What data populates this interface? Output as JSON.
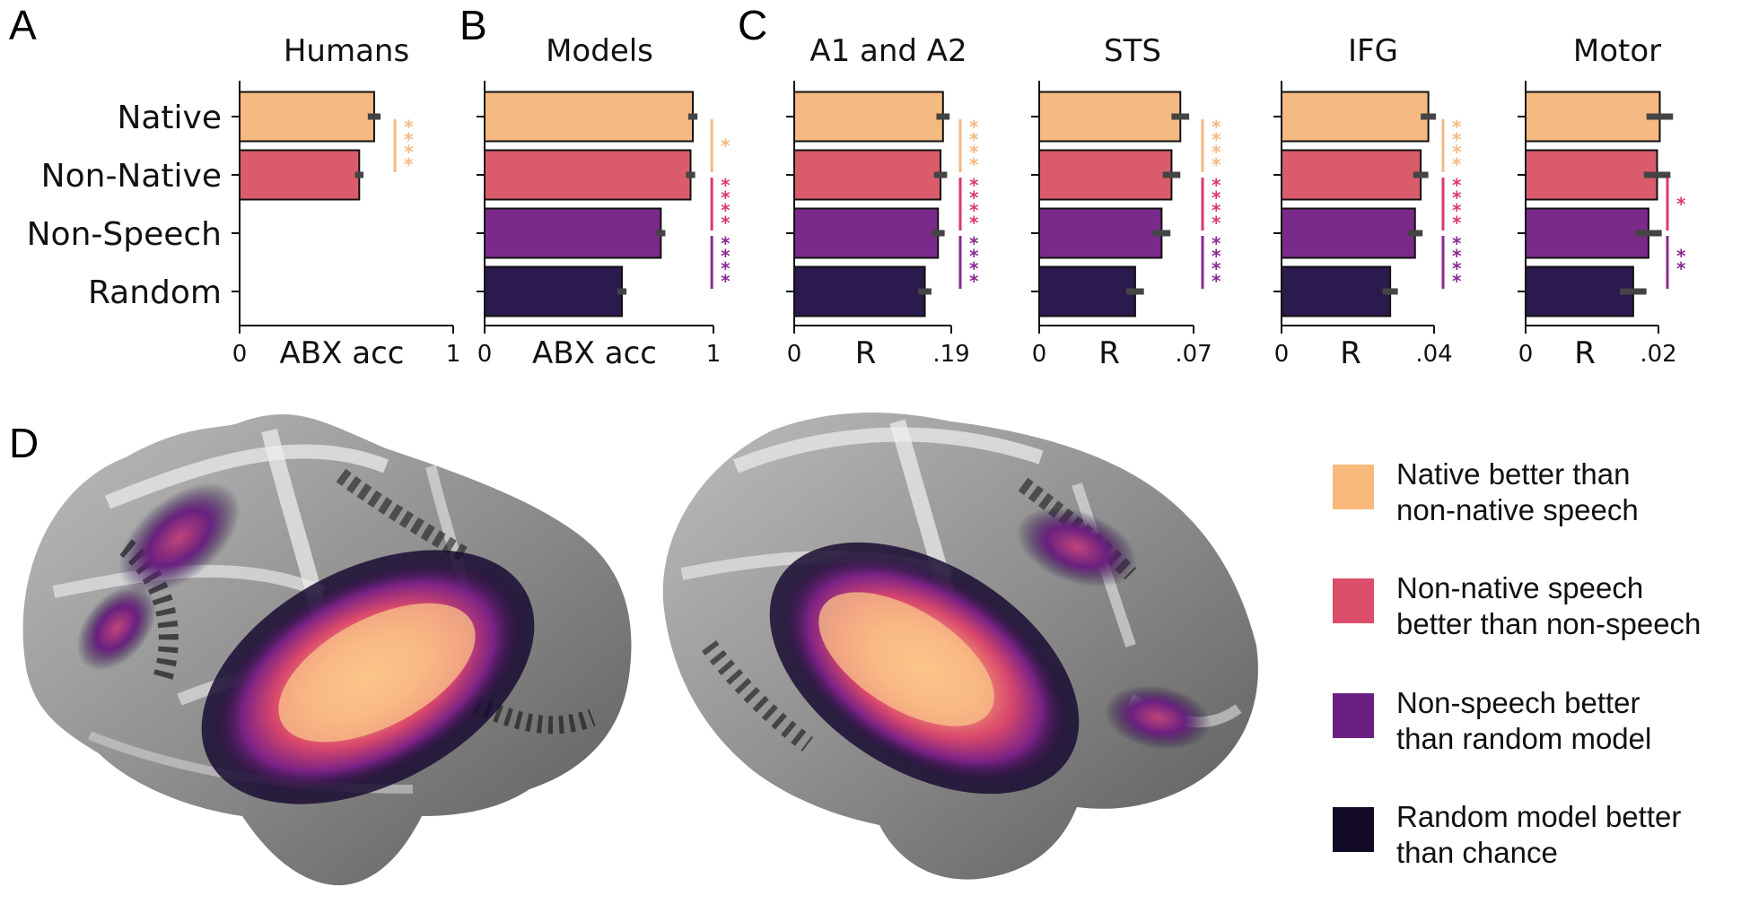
{
  "panels": {
    "A": "A",
    "B": "B",
    "C": "C",
    "D": "D"
  },
  "colors": {
    "native": "#F5B982",
    "non_native": "#DA5C6C",
    "non_speech": "#7A2A8A",
    "random": "#2A1A4E",
    "error_bar": "#444444",
    "sig_native_nonnative": "#F5B982",
    "sig_nonnative_nonspeech": "#DA3A6A",
    "sig_nonspeech_random": "#8A2A90"
  },
  "chart_data": [
    {
      "id": "humans",
      "panel": "A",
      "type": "bar",
      "orientation": "horizontal",
      "title": "Humans",
      "xlabel": "ABX acc",
      "xlim": [
        0,
        1
      ],
      "xtick_labels": [
        "0",
        "1"
      ],
      "categories": [
        "Native",
        "Non-Native",
        "Non-Speech",
        "Random"
      ],
      "values": [
        0.63,
        0.56,
        null,
        null
      ],
      "errors": [
        0.03,
        0.02,
        null,
        null
      ],
      "significance": [
        {
          "pair": [
            0,
            1
          ],
          "label": "****",
          "color": "#F5B982"
        }
      ]
    },
    {
      "id": "models",
      "panel": "B",
      "type": "bar",
      "orientation": "horizontal",
      "title": "Models",
      "xlabel": "ABX acc",
      "xlim": [
        0,
        1
      ],
      "xtick_labels": [
        "0",
        "1"
      ],
      "categories": [
        "Native",
        "Non-Native",
        "Non-Speech",
        "Random"
      ],
      "values": [
        0.91,
        0.9,
        0.77,
        0.6
      ],
      "errors": [
        0.02,
        0.02,
        0.02,
        0.02
      ],
      "significance": [
        {
          "pair": [
            0,
            1
          ],
          "label": "*",
          "color": "#F5B982"
        },
        {
          "pair": [
            1,
            2
          ],
          "label": "****",
          "color": "#DA3A6A"
        },
        {
          "pair": [
            2,
            3
          ],
          "label": "****",
          "color": "#8A2A90"
        }
      ]
    },
    {
      "id": "a1a2",
      "panel": "C",
      "type": "bar",
      "orientation": "horizontal",
      "title": "A1 and A2",
      "xlabel": "R",
      "xlim": [
        0,
        0.19
      ],
      "xtick_labels": [
        "0",
        ".19"
      ],
      "categories": [
        "Native",
        "Non-Native",
        "Non-Speech",
        "Random"
      ],
      "values": [
        0.18,
        0.177,
        0.174,
        0.158
      ],
      "errors": [
        0.008,
        0.008,
        0.008,
        0.008
      ],
      "significance": [
        {
          "pair": [
            0,
            1
          ],
          "label": "****",
          "color": "#F5B982"
        },
        {
          "pair": [
            1,
            2
          ],
          "label": "****",
          "color": "#DA3A6A"
        },
        {
          "pair": [
            2,
            3
          ],
          "label": "****",
          "color": "#8A2A90"
        }
      ]
    },
    {
      "id": "sts",
      "panel": "C",
      "type": "bar",
      "orientation": "horizontal",
      "title": "STS",
      "xlabel": "R",
      "xlim": [
        0,
        0.07
      ],
      "xtick_labels": [
        "0",
        ".07"
      ],
      "categories": [
        "Native",
        "Non-Native",
        "Non-Speech",
        "Random"
      ],
      "values": [
        0.064,
        0.06,
        0.0555,
        0.0435
      ],
      "errors": [
        0.004,
        0.004,
        0.004,
        0.004
      ],
      "significance": [
        {
          "pair": [
            0,
            1
          ],
          "label": "****",
          "color": "#F5B982"
        },
        {
          "pair": [
            1,
            2
          ],
          "label": "****",
          "color": "#DA3A6A"
        },
        {
          "pair": [
            2,
            3
          ],
          "label": "****",
          "color": "#8A2A90"
        }
      ]
    },
    {
      "id": "ifg",
      "panel": "C",
      "type": "bar",
      "orientation": "horizontal",
      "title": "IFG",
      "xlabel": "R",
      "xlim": [
        0,
        0.04
      ],
      "xtick_labels": [
        "0",
        ".04"
      ],
      "categories": [
        "Native",
        "Non-Native",
        "Non-Speech",
        "Random"
      ],
      "values": [
        0.0385,
        0.0365,
        0.035,
        0.0285
      ],
      "errors": [
        0.002,
        0.002,
        0.002,
        0.002
      ],
      "significance": [
        {
          "pair": [
            0,
            1
          ],
          "label": "****",
          "color": "#F5B982"
        },
        {
          "pair": [
            1,
            2
          ],
          "label": "****",
          "color": "#DA3A6A"
        },
        {
          "pair": [
            2,
            3
          ],
          "label": "****",
          "color": "#8A2A90"
        }
      ]
    },
    {
      "id": "motor",
      "panel": "C",
      "type": "bar",
      "orientation": "horizontal",
      "title": "Motor",
      "xlabel": "R",
      "xlim": [
        0,
        0.02
      ],
      "xtick_labels": [
        "0",
        ".02"
      ],
      "categories": [
        "Native",
        "Non-Native",
        "Non-Speech",
        "Random"
      ],
      "values": [
        0.0202,
        0.0198,
        0.0185,
        0.0162
      ],
      "errors": [
        0.002,
        0.002,
        0.002,
        0.002
      ],
      "significance": [
        {
          "pair": [
            1,
            2
          ],
          "label": "*",
          "color": "#DA3A6A"
        },
        {
          "pair": [
            2,
            3
          ],
          "label": "**",
          "color": "#8A2A90"
        }
      ]
    }
  ],
  "brain_map": {
    "views": [
      "left-hemisphere",
      "right-hemisphere"
    ],
    "legend": [
      {
        "lines": [
          "Native better than",
          "non-native speech"
        ],
        "color": "#F9B97C"
      },
      {
        "lines": [
          "Non-native speech",
          "better than non-speech"
        ],
        "color": "#DA4E6A"
      },
      {
        "lines": [
          "Non-speech better",
          "than random model"
        ],
        "color": "#6A2080"
      },
      {
        "lines": [
          "Random model better",
          "than chance"
        ],
        "color": "#120A26"
      }
    ]
  }
}
